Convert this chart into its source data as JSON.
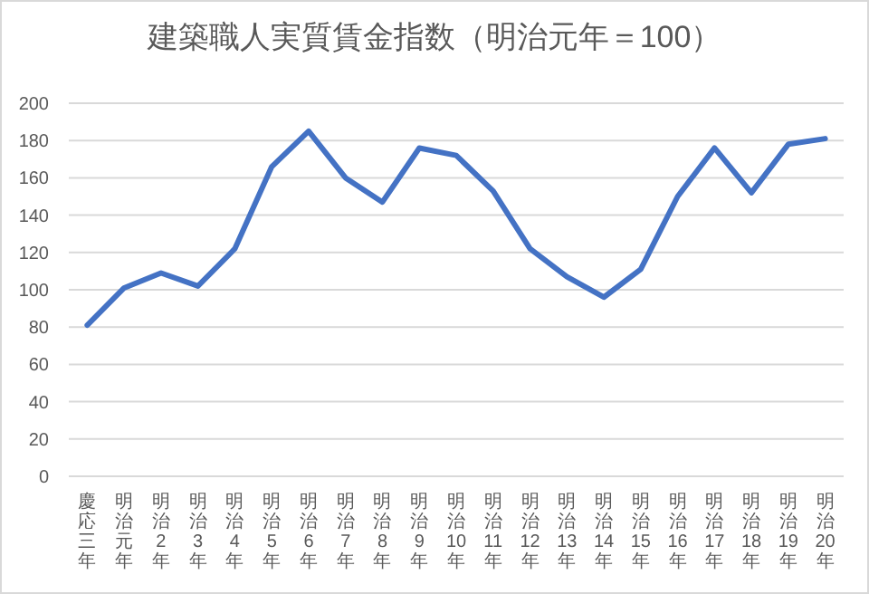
{
  "chart_data": {
    "type": "line",
    "title": "建築職人実質賃金指数（明治元年＝100）",
    "categories": [
      "慶応三年",
      "明治元年",
      "明治2年",
      "明治3年",
      "明治4年",
      "明治5年",
      "明治6年",
      "明治7年",
      "明治8年",
      "明治9年",
      "明治10年",
      "明治11年",
      "明治12年",
      "明治13年",
      "明治14年",
      "明治15年",
      "明治16年",
      "明治17年",
      "明治18年",
      "明治19年",
      "明治20年"
    ],
    "series": [
      {
        "color": "#4472c4",
        "values": [
          81,
          101,
          109,
          102,
          122,
          166,
          185,
          160,
          147,
          176,
          172,
          153,
          122,
          107,
          96,
          111,
          150,
          176,
          152,
          178,
          181
        ]
      }
    ],
    "ylim": [
      0,
      200
    ],
    "yticks": [
      0,
      20,
      40,
      60,
      80,
      100,
      120,
      140,
      160,
      180,
      200
    ],
    "grid": "y",
    "marker": "none",
    "line_style": "solid"
  }
}
